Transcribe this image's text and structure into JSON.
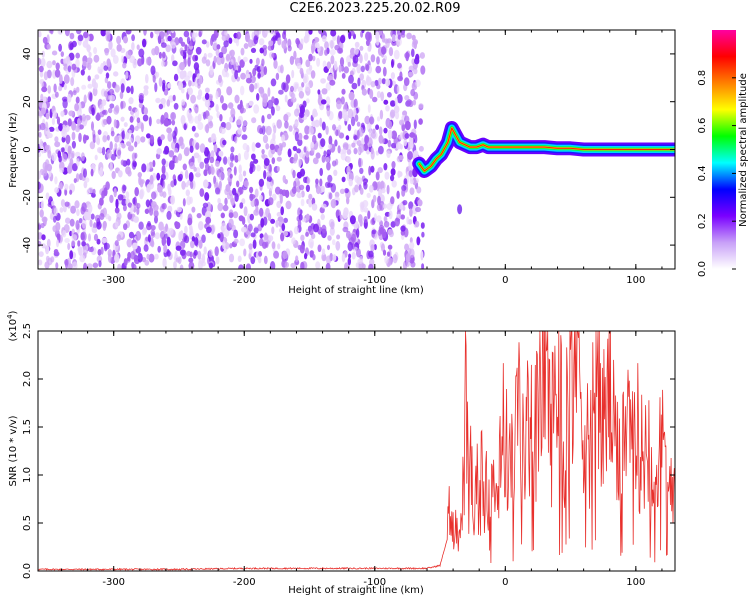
{
  "title": "C2E6.2023.225.20.02.R09",
  "chart_data": [
    {
      "type": "heatmap",
      "xlabel": "Height of straight line (km)",
      "ylabel": "Frequency (Hz)",
      "xlim": [
        -358,
        130
      ],
      "ylim": [
        -50,
        50
      ],
      "xticks": [
        -300,
        -200,
        -100,
        0,
        100
      ],
      "xtick_labels": [
        "-300",
        "-200",
        "-100",
        "0",
        "100"
      ],
      "yticks": [
        -40,
        -20,
        0,
        20,
        40
      ],
      "ytick_labels": [
        "-40",
        "-20",
        "0",
        "20",
        "40"
      ],
      "noise_region_x": [
        -358,
        -63
      ],
      "noise_colors": [
        "#ffffff",
        "#e9d6fb",
        "#cfa6f5",
        "#a55ef0",
        "#7a1ff0"
      ],
      "echo_trace": {
        "x": [
          -66,
          -62,
          -57,
          -53,
          -49,
          -44,
          -41,
          -38,
          -35,
          -31,
          -27,
          -22,
          -17,
          -13,
          -8,
          -3,
          0,
          5,
          10,
          20,
          30,
          40,
          50,
          60,
          70,
          80,
          90,
          100,
          110,
          120,
          130
        ],
        "y": [
          -6,
          -9,
          -7,
          -4,
          -2,
          3,
          9,
          6,
          3,
          2,
          1,
          1,
          2,
          1,
          1,
          1,
          1,
          1,
          1,
          1,
          1,
          0.5,
          0.5,
          0,
          0,
          0,
          0,
          0,
          0,
          0,
          0
        ]
      },
      "echo_blob": {
        "x": -35,
        "y": -25
      },
      "colorbar": {
        "label": "Normalized spectral amplitude",
        "ticks": [
          0.0,
          0.2,
          0.4,
          0.6,
          0.8
        ],
        "tick_labels": [
          "0.0",
          "0.2",
          "0.4",
          "0.6",
          "0.8"
        ],
        "range": [
          0,
          1
        ],
        "colors": [
          "#ffffff",
          "#c8a0f8",
          "#7a00ff",
          "#0000ff",
          "#00ffff",
          "#00ff00",
          "#ffff00",
          "#ff8000",
          "#ff0000",
          "#ff00a0"
        ]
      }
    },
    {
      "type": "line",
      "xlabel": "Height of straight line (km)",
      "ylabel": "SNR (10 * v/v)",
      "yscale_label": "(x10",
      "yscale_exp": "4",
      "yscale_close": ")",
      "xlim": [
        -358,
        130
      ],
      "ylim": [
        0,
        2.5
      ],
      "xticks": [
        -300,
        -200,
        -100,
        0,
        100
      ],
      "xtick_labels": [
        "-300",
        "-200",
        "-100",
        "0",
        "100"
      ],
      "yticks": [
        0.0,
        0.5,
        1.0,
        1.5,
        2.0,
        2.5
      ],
      "ytick_labels": [
        "0.0",
        "0.5",
        "1.0",
        "1.5",
        "2.0",
        "2.5"
      ],
      "series": [
        {
          "color": "#e8302c",
          "x": [
            -358,
            -300,
            -250,
            -200,
            -150,
            -100,
            -60,
            -50,
            -45,
            -42,
            -40,
            -38,
            -35,
            -32,
            -30,
            -28,
            -26,
            -24,
            -22,
            -20,
            -18,
            -16,
            -14,
            -12,
            -10,
            -8,
            -5,
            -3,
            0,
            5,
            10,
            15,
            20,
            25,
            30,
            35,
            40,
            45,
            50,
            55,
            60,
            65,
            70,
            75,
            80,
            85,
            90,
            95,
            100,
            105,
            110,
            115,
            120,
            125,
            130
          ],
          "y": [
            0.01,
            0.01,
            0.01,
            0.02,
            0.02,
            0.02,
            0.02,
            0.05,
            0.3,
            0.8,
            0.4,
            0.6,
            0.3,
            0.9,
            1.9,
            0.5,
            1.2,
            0.3,
            1.0,
            0.5,
            1.1,
            0.6,
            1.3,
            0.4,
            1.5,
            0.7,
            1.0,
            1.6,
            1.3,
            1.1,
            1.7,
            1.2,
            1.8,
            1.5,
            2.5,
            1.4,
            2.1,
            1.3,
            2.3,
            2.5,
            1.7,
            1.2,
            2.2,
            1.5,
            1.9,
            1.1,
            1.6,
            1.3,
            1.5,
            1.2,
            1.4,
            1.0,
            1.3,
            0.9,
            1.1
          ]
        }
      ]
    }
  ]
}
